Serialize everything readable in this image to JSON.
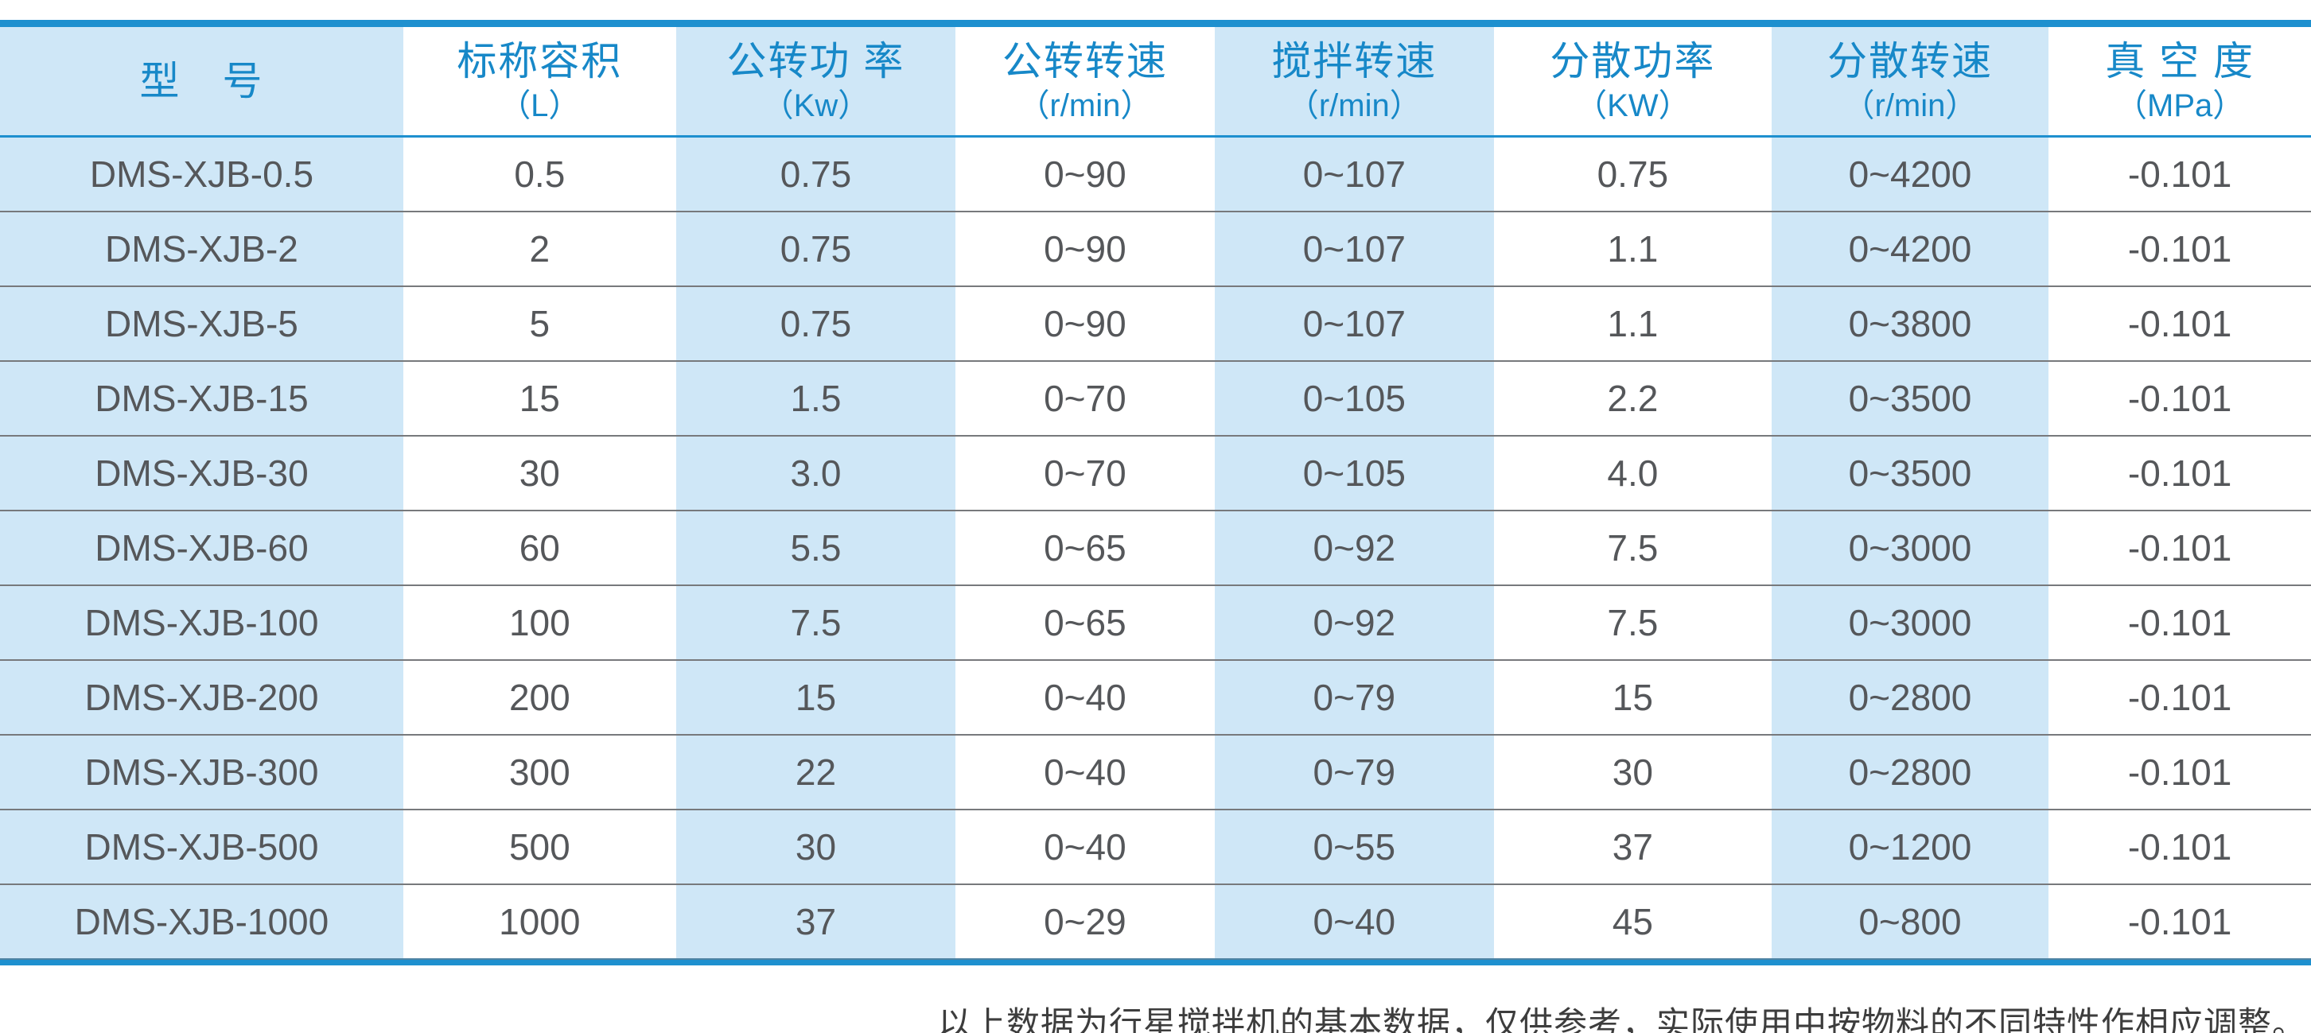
{
  "colors": {
    "rule_blue": "#1e90cf",
    "header_text_blue": "#1788c8",
    "tinted_column": "#cfe7f7",
    "row_separator": "#77797c",
    "cell_text": "#55575a"
  },
  "table": {
    "columns": [
      {
        "label": "型　号",
        "unit": "",
        "tinted": true
      },
      {
        "label": "标称容积",
        "unit": "（L）",
        "tinted": false
      },
      {
        "label": "公转功 率",
        "unit": "（Kw）",
        "tinted": true
      },
      {
        "label": "公转转速",
        "unit": "（r/min）",
        "tinted": false
      },
      {
        "label": "搅拌转速",
        "unit": "（r/min）",
        "tinted": true
      },
      {
        "label": "分散功率",
        "unit": "（KW）",
        "tinted": false
      },
      {
        "label": "分散转速",
        "unit": "（r/min）",
        "tinted": true
      },
      {
        "label": "真 空 度",
        "unit": "（MPa）",
        "tinted": false
      }
    ],
    "rows": [
      [
        "DMS-XJB-0.5",
        "0.5",
        "0.75",
        "0~90",
        "0~107",
        "0.75",
        "0~4200",
        "-0.101"
      ],
      [
        "DMS-XJB-2",
        "2",
        "0.75",
        "0~90",
        "0~107",
        "1.1",
        "0~4200",
        "-0.101"
      ],
      [
        "DMS-XJB-5",
        "5",
        "0.75",
        "0~90",
        "0~107",
        "1.1",
        "0~3800",
        "-0.101"
      ],
      [
        "DMS-XJB-15",
        "15",
        "1.5",
        "0~70",
        "0~105",
        "2.2",
        "0~3500",
        "-0.101"
      ],
      [
        "DMS-XJB-30",
        "30",
        "3.0",
        "0~70",
        "0~105",
        "4.0",
        "0~3500",
        "-0.101"
      ],
      [
        "DMS-XJB-60",
        "60",
        "5.5",
        "0~65",
        "0~92",
        "7.5",
        "0~3000",
        "-0.101"
      ],
      [
        "DMS-XJB-100",
        "100",
        "7.5",
        "0~65",
        "0~92",
        "7.5",
        "0~3000",
        "-0.101"
      ],
      [
        "DMS-XJB-200",
        "200",
        "15",
        "0~40",
        "0~79",
        "15",
        "0~2800",
        "-0.101"
      ],
      [
        "DMS-XJB-300",
        "300",
        "22",
        "0~40",
        "0~79",
        "30",
        "0~2800",
        "-0.101"
      ],
      [
        "DMS-XJB-500",
        "500",
        "30",
        "0~40",
        "0~55",
        "37",
        "0~1200",
        "-0.101"
      ],
      [
        "DMS-XJB-1000",
        "1000",
        "37",
        "0~29",
        "0~40",
        "45",
        "0~800",
        "-0.101"
      ]
    ]
  },
  "footer": {
    "note": "以上数据为行星搅拌机的基本数据，仅供参考，实际使用中按物料的不同特性作相应调整。"
  }
}
